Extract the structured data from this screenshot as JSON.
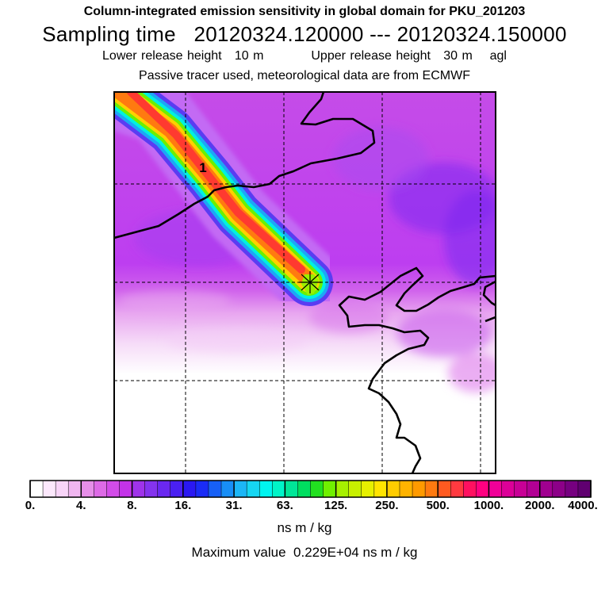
{
  "header": {
    "title": "Column-integrated emission sensitivity in global domain for PKU_201203",
    "sampling_label": "Sampling time",
    "sampling_start": "20120324.120000",
    "sampling_sep": "---",
    "sampling_end": "20120324.150000",
    "lower_release": "Lower release height   10 m",
    "upper_release": "Upper release height   30 m",
    "agl": "agl",
    "tracer_note": "Passive tracer used, meteorological data are from ECMWF"
  },
  "chart_data": {
    "type": "heatmap",
    "title": "Column-integrated emission sensitivity in global domain for PKU_201203",
    "plume_label": "1",
    "release_marker": "release-site-star",
    "colorbar": {
      "tick_labels": [
        "0.",
        "4.",
        "8.",
        "16.",
        "31.",
        "63.",
        "125.",
        "250.",
        "500.",
        "1000.",
        "2000.",
        "4000."
      ],
      "tick_values": [
        0,
        4,
        8,
        16,
        31,
        63,
        125,
        250,
        500,
        1000,
        2000,
        4000
      ],
      "colors": [
        "#ffffff",
        "#fce8fc",
        "#f8d4f8",
        "#f0b6f0",
        "#e68ee8",
        "#dd6ae6",
        "#d24ce8",
        "#c333e8",
        "#9f33ea",
        "#8433ee",
        "#6a28f0",
        "#4a20f2",
        "#2a18f2",
        "#1a2cf6",
        "#1760f6",
        "#188ef6",
        "#1cb6f6",
        "#16d6f2",
        "#00f4f0",
        "#00f4c8",
        "#00e698",
        "#00de60",
        "#22e020",
        "#70f000",
        "#a6f000",
        "#c8f000",
        "#e6f000",
        "#ffe400",
        "#ffcc00",
        "#ffb300",
        "#ff9a00",
        "#ff7a10",
        "#ff5a20",
        "#ff3a40",
        "#ff1060",
        "#ff0080",
        "#f00098",
        "#dc0098",
        "#c80096",
        "#b20094",
        "#a00090",
        "#8c0088",
        "#760080",
        "#600070"
      ]
    },
    "units": "ns m / kg",
    "max_value_label": "Maximum value",
    "max_value": "0.229E+04",
    "max_value_units": "ns m / kg",
    "max_value_number": 2290
  }
}
